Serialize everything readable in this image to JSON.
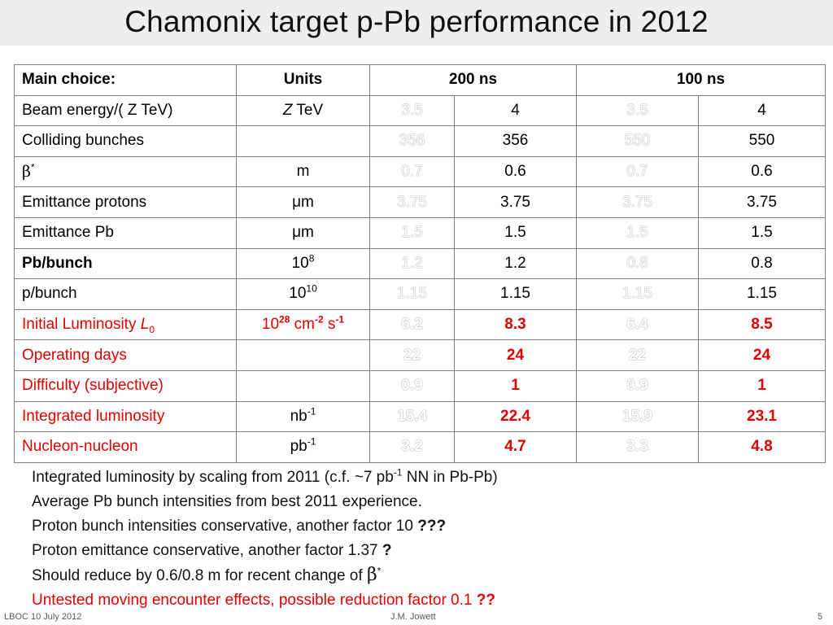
{
  "slide": {
    "title": "Chamonix target p-Pb performance in 2012"
  },
  "table": {
    "header": {
      "label": "Main choice:",
      "units": "Units",
      "group1": "200 ns",
      "group2": "100 ns"
    },
    "rows": [
      {
        "label": "Beam energy/( Z TeV)",
        "unit_italic": "Z",
        "unit": " TeV",
        "v": [
          "3.5",
          "4",
          "3.5",
          "4"
        ]
      },
      {
        "label": "Colliding bunches",
        "unit": "",
        "v": [
          "356",
          "356",
          "550",
          "550"
        ]
      },
      {
        "label_symbol": "β",
        "label_sup": "*",
        "unit": "m",
        "v": [
          "0.7",
          "0.6",
          "0.7",
          "0.6"
        ]
      },
      {
        "label": "Emittance protons",
        "unit": "μm",
        "v": [
          "3.75",
          "3.75",
          "3.75",
          "3.75"
        ]
      },
      {
        "label": "Emittance Pb",
        "unit": "μm",
        "v": [
          "1.5",
          "1.5",
          "1.5",
          "1.5"
        ]
      },
      {
        "label": "Pb/bunch",
        "unit_base": "10",
        "unit_sup": "8",
        "v": [
          "1.2",
          "1.2",
          "0.8",
          "0.8"
        ]
      },
      {
        "label": "p/bunch",
        "unit_base": "10",
        "unit_sup": "10",
        "v": [
          "1.15",
          "1.15",
          "1.15",
          "1.15"
        ]
      },
      {
        "label": "Initial Luminosity ",
        "label_italic": "L",
        "label_sub": "0",
        "unit_base": "10",
        "unit_sup": "28",
        "unit_mid": " cm",
        "unit_sup2": "-2",
        "unit_mid2": " s",
        "unit_sup3": "-1",
        "v": [
          "6.2",
          "8.3",
          "6.4",
          "8.5"
        ]
      },
      {
        "label": "Operating days",
        "unit": "",
        "v": [
          "22",
          "24",
          "22",
          "24"
        ]
      },
      {
        "label": "Difficulty (subjective)",
        "unit": "",
        "v": [
          "0.9",
          "1",
          "0.9",
          "1"
        ]
      },
      {
        "label": "Integrated luminosity",
        "unit_base": "nb",
        "unit_sup": "-1",
        "v": [
          "15.4",
          "22.4",
          "15.9",
          "23.1"
        ]
      },
      {
        "label": "Nucleon-nucleon",
        "unit_base": "pb",
        "unit_sup": "-1",
        "v": [
          "3.2",
          "4.7",
          "3.3",
          "4.8"
        ]
      }
    ]
  },
  "notes": {
    "n1_a": "Integrated luminosity by scaling from 2011 (c.f. ~7 pb",
    "n1_sup": "-1",
    "n1_b": " NN in Pb-Pb)",
    "n2": "Average Pb bunch intensities from best  2011 experience.",
    "n3_a": "Proton bunch intensities conservative, another factor 10 ",
    "n3_b": "???",
    "n4_a": "Proton emittance conservative, another factor 1.37 ",
    "n4_b": "?",
    "n5_a": "Should reduce by 0.6/0.8 m for recent change of ",
    "n5_sym": "β",
    "n5_sup": "*",
    "n6_a": "Untested moving encounter effects, possible reduction factor 0.1 ",
    "n6_b": "??"
  },
  "footer": {
    "left": "LBOC 10 July 2012",
    "center": "J.M. Jowett",
    "page": "5"
  },
  "colors": {
    "red": "#e00000",
    "title_bar": "#eeeeee"
  }
}
